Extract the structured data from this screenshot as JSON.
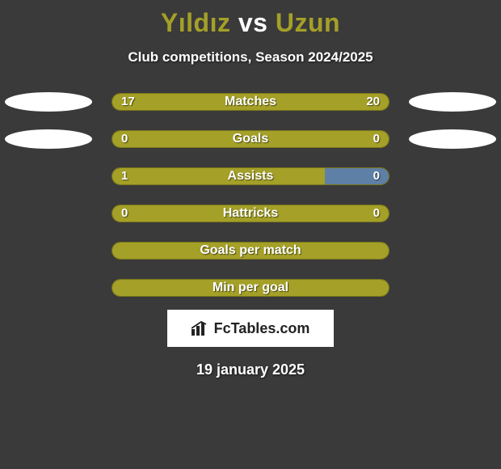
{
  "title": {
    "player1": "Yıldız",
    "vs": "vs",
    "player2": "Uzun",
    "player1_color": "#a4a028",
    "vs_color": "#ffffff",
    "player2_color": "#a4a028",
    "fontsize": 32
  },
  "subtitle": "Club competitions, Season 2024/2025",
  "colors": {
    "background": "#3a3a3a",
    "left_fill": "#a4a028",
    "right_fill": "#a4a028",
    "track": "#a4a028",
    "track_border": "#7a7719",
    "oval_left": "#ffffff",
    "oval_right": "#ffffff",
    "text": "#ffffff"
  },
  "bar": {
    "track_width": 344,
    "track_height": 22,
    "border_radius": 11
  },
  "rows": [
    {
      "label": "Matches",
      "left_value": "17",
      "right_value": "20",
      "left_raw": 17,
      "right_raw": 20,
      "show_values": true,
      "show_ovals": true,
      "fill_mode": "proportional"
    },
    {
      "label": "Goals",
      "left_value": "0",
      "right_value": "0",
      "left_raw": 0,
      "right_raw": 0,
      "show_values": true,
      "show_ovals": true,
      "fill_mode": "full-left"
    },
    {
      "label": "Assists",
      "left_value": "1",
      "right_value": "0",
      "left_raw": 1,
      "right_raw": 0,
      "show_values": true,
      "show_ovals": false,
      "fill_mode": "assists"
    },
    {
      "label": "Hattricks",
      "left_value": "0",
      "right_value": "0",
      "left_raw": 0,
      "right_raw": 0,
      "show_values": true,
      "show_ovals": false,
      "fill_mode": "full-left"
    },
    {
      "label": "Goals per match",
      "left_value": "",
      "right_value": "",
      "left_raw": 0,
      "right_raw": 0,
      "show_values": false,
      "show_ovals": false,
      "fill_mode": "full-left"
    },
    {
      "label": "Min per goal",
      "left_value": "",
      "right_value": "",
      "left_raw": 0,
      "right_raw": 0,
      "show_values": false,
      "show_ovals": false,
      "fill_mode": "full-left"
    }
  ],
  "assists_split": {
    "left_pct": 77,
    "right_pct": 23,
    "right_color": "#5e7fa6"
  },
  "brand": {
    "text": "FcTables.com",
    "icon_name": "bar-chart-icon"
  },
  "date": "19 january 2025"
}
